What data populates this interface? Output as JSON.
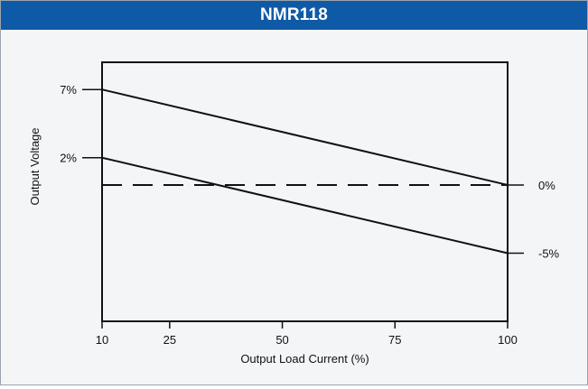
{
  "header": {
    "title": "NMR118"
  },
  "colors": {
    "header_bg": "#0f5aa6",
    "line": "#111111"
  },
  "chart_data": {
    "type": "line",
    "title": "NMR118",
    "xlabel": "Output Load Current (%)",
    "ylabel": "Output Voltage",
    "xlim": [
      10,
      100
    ],
    "ylim": [
      -10,
      9
    ],
    "x_ticks": [
      10,
      25,
      50,
      75,
      100
    ],
    "x_tick_labels": [
      "10",
      "25",
      "50",
      "75",
      "100"
    ],
    "left_y_ticks": [
      {
        "value": 7,
        "label": "7%"
      },
      {
        "value": 2,
        "label": "2%"
      }
    ],
    "right_y_ticks": [
      {
        "value": 0,
        "label": "0%"
      },
      {
        "value": -5,
        "label": "-5%"
      }
    ],
    "series": [
      {
        "x": [
          10,
          100
        ],
        "y": [
          7,
          0
        ],
        "style": "solid"
      },
      {
        "x": [
          10,
          100
        ],
        "y": [
          2,
          -5
        ],
        "style": "solid"
      },
      {
        "x": [
          10,
          100
        ],
        "y": [
          0,
          0
        ],
        "style": "dashed"
      }
    ],
    "grid": false
  }
}
